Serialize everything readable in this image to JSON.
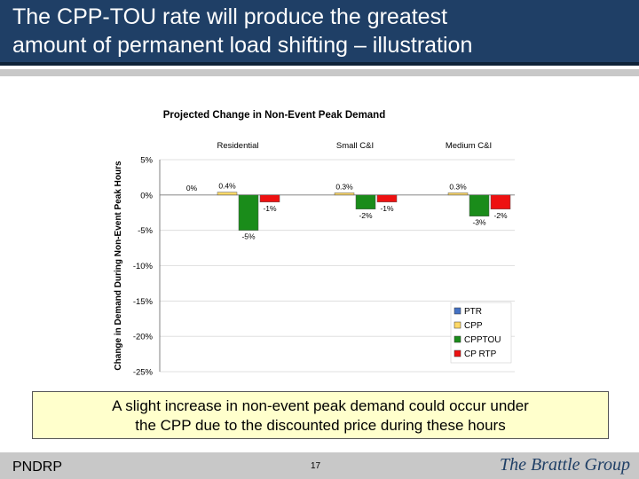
{
  "slide": {
    "title_line1": "The CPP-TOU rate will produce the greatest",
    "title_line2": "amount of permanent load shifting – illustration",
    "callout_line1": "A slight increase in non-event peak demand could occur under",
    "callout_line2": "the CPP due to the discounted price during these hours",
    "footer_left": "PNDRP",
    "page_number": "17",
    "logo_text": "The Brattle Group"
  },
  "chart_data": {
    "type": "bar",
    "title": "Projected Change in Non-Event Peak Demand",
    "ylabel": "Change in Demand During Non-Event Peak Hours",
    "xlabel": "",
    "categories": [
      "Residential",
      "Small C&I",
      "Medium C&I"
    ],
    "ylim": [
      -25,
      5
    ],
    "yticks": [
      5,
      0,
      -5,
      -10,
      -15,
      -20,
      -25
    ],
    "ytick_labels": [
      "5%",
      "0%",
      "-5%",
      "-10%",
      "-15%",
      "-20%",
      "-25%"
    ],
    "grid": true,
    "legend_position": "bottom-right",
    "series": [
      {
        "name": "PTR",
        "color": "#4472c4",
        "values": [
          0,
          null,
          null
        ],
        "labels": [
          "0%",
          "",
          ""
        ]
      },
      {
        "name": "CPP",
        "color": "#ffd966",
        "values": [
          0.4,
          0.3,
          0.3
        ],
        "labels": [
          "0.4%",
          "0.3%",
          "0.3%"
        ]
      },
      {
        "name": "CPPTOU",
        "color": "#1a8c1a",
        "values": [
          -5,
          -2,
          -3
        ],
        "labels": [
          "-5%",
          "-2%",
          "-3%"
        ]
      },
      {
        "name": "CP RTP",
        "color": "#ee1111",
        "values": [
          -1,
          -1,
          -2
        ],
        "labels": [
          "-1%",
          "-1%",
          "-2%"
        ]
      }
    ]
  }
}
